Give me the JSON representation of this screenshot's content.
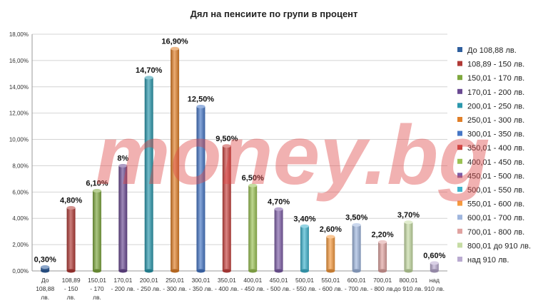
{
  "chart_data": {
    "type": "bar",
    "title": "Дял на пенсиите по групи в процент",
    "ylim": [
      0,
      18
    ],
    "yticks": [
      "0,00%",
      "2,00%",
      "4,00%",
      "6,00%",
      "8,00%",
      "10,00%",
      "12,00%",
      "14,00%",
      "16,00%",
      "18,00%"
    ],
    "grid": true,
    "legend_position": "right",
    "categories": [
      [
        "До",
        "108,88",
        "лв."
      ],
      [
        "108,89",
        "- 150",
        "лв."
      ],
      [
        "150,01",
        "- 170",
        "лв."
      ],
      [
        "170,01",
        "- 200 лв."
      ],
      [
        "200,01",
        "- 250 лв."
      ],
      [
        "250,01",
        "- 300 лв."
      ],
      [
        "300,01",
        "- 350 лв."
      ],
      [
        "350,01",
        "- 400 лв."
      ],
      [
        "400,01",
        "- 450 лв."
      ],
      [
        "450,01",
        "- 500 лв."
      ],
      [
        "500,01",
        "- 550 лв."
      ],
      [
        "550,01",
        "- 600 лв."
      ],
      [
        "600,01",
        "- 700 лв."
      ],
      [
        "700,01",
        "- 800 лв."
      ],
      [
        "800,01",
        "до 910 лв."
      ],
      [
        "над",
        "910 лв."
      ]
    ],
    "values": [
      0.3,
      4.8,
      6.1,
      8,
      14.7,
      16.9,
      12.5,
      9.5,
      6.5,
      4.7,
      3.4,
      2.6,
      3.5,
      2.2,
      3.7,
      0.6
    ],
    "value_labels": [
      "0,30%",
      "4,80%",
      "6,10%",
      "8%",
      "14,70%",
      "16,90%",
      "12,50%",
      "9,50%",
      "6,50%",
      "4,70%",
      "3,40%",
      "2,60%",
      "3,50%",
      "2,20%",
      "3,70%",
      "0,60%"
    ],
    "legend": [
      "До 108,88 лв.",
      "108,89 - 150 лв.",
      "150,01 - 170 лв.",
      "170,01 - 200 лв.",
      "200,01 - 250 лв.",
      "250,01 - 300 лв.",
      "300,01 - 350 лв.",
      "350,01 - 400 лв.",
      "400,01 - 450 лв.",
      "450,01 - 500 лв.",
      "500,01 - 550 лв.",
      "550,01 - 600 лв.",
      "600,01 - 700 лв.",
      "700,01 - 800 лв.",
      "800,01 до 910 лв.",
      "над 910 лв."
    ],
    "colors": [
      "#2f5f9e",
      "#b13a36",
      "#7ea83e",
      "#6a4a92",
      "#2b98ad",
      "#e07f28",
      "#4677c6",
      "#c84440",
      "#9ac253",
      "#7d5ea8",
      "#3fb3cd",
      "#f59a3e",
      "#9fb6de",
      "#e0a2a0",
      "#c6dca4",
      "#b9aad0"
    ]
  },
  "watermark": "money.bg"
}
